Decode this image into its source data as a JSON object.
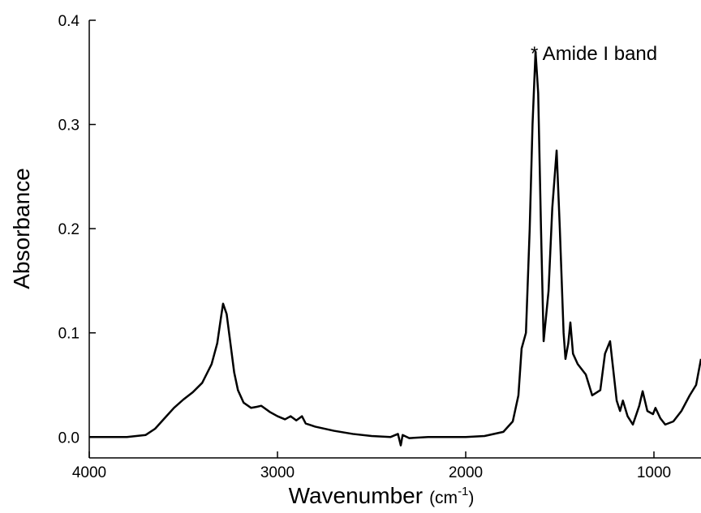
{
  "chart_data": {
    "type": "line",
    "x_label": "Wavenumber",
    "x_unit": [
      "(cm",
      "-1",
      ")"
    ],
    "y_label": "Absorbance",
    "annotation": "* Amide I band",
    "color": "#000000",
    "xlim": [
      4000,
      750
    ],
    "ylim": [
      -0.02,
      0.4
    ],
    "xticks": [
      4000,
      3000,
      2000,
      1000
    ],
    "yticks": [
      {
        "value": 0,
        "label": "0.0"
      },
      0.1,
      0.2,
      0.3,
      0.4
    ],
    "x": [
      4000,
      3800,
      3700,
      3650,
      3600,
      3550,
      3500,
      3450,
      3400,
      3350,
      3320,
      3300,
      3289,
      3270,
      3250,
      3230,
      3210,
      3180,
      3140,
      3110,
      3086,
      3040,
      3000,
      2960,
      2930,
      2900,
      2870,
      2850,
      2800,
      2700,
      2600,
      2500,
      2400,
      2360,
      2345,
      2335,
      2300,
      2200,
      2000,
      1900,
      1800,
      1750,
      1720,
      1703,
      1680,
      1660,
      1645,
      1629,
      1615,
      1600,
      1586,
      1560,
      1540,
      1517,
      1500,
      1480,
      1470,
      1455,
      1444,
      1430,
      1405,
      1362,
      1328,
      1285,
      1260,
      1233,
      1198,
      1180,
      1165,
      1140,
      1112,
      1078,
      1060,
      1035,
      1005,
      992,
      966,
      940,
      897,
      854,
      810,
      776,
      750
    ],
    "values": [
      0.0,
      0.0,
      0.002,
      0.008,
      0.018,
      0.028,
      0.036,
      0.043,
      0.052,
      0.07,
      0.09,
      0.115,
      0.128,
      0.118,
      0.09,
      0.062,
      0.045,
      0.033,
      0.028,
      0.029,
      0.03,
      0.024,
      0.02,
      0.017,
      0.02,
      0.016,
      0.02,
      0.013,
      0.01,
      0.006,
      0.003,
      0.001,
      0.0,
      0.003,
      -0.008,
      0.002,
      -0.001,
      0.0,
      0.0,
      0.001,
      0.005,
      0.015,
      0.04,
      0.085,
      0.1,
      0.2,
      0.3,
      0.37,
      0.33,
      0.2,
      0.092,
      0.14,
      0.22,
      0.275,
      0.2,
      0.1,
      0.075,
      0.09,
      0.11,
      0.08,
      0.07,
      0.06,
      0.04,
      0.045,
      0.08,
      0.092,
      0.035,
      0.025,
      0.035,
      0.02,
      0.012,
      0.03,
      0.044,
      0.025,
      0.022,
      0.028,
      0.018,
      0.012,
      0.015,
      0.025,
      0.04,
      0.05,
      0.075
    ]
  }
}
